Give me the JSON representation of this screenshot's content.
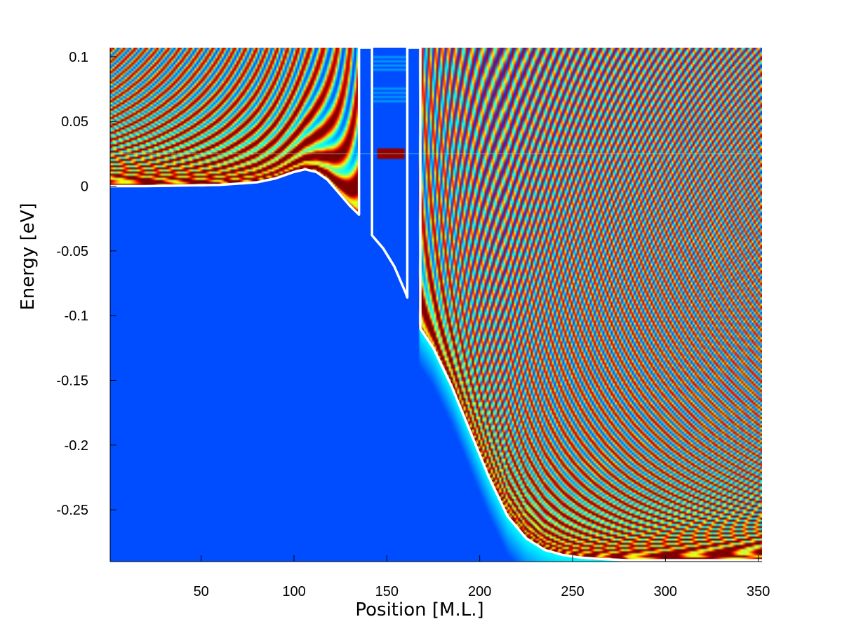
{
  "chart_data": {
    "type": "heatmap",
    "title": "",
    "xlabel": "Position [M.L.]",
    "ylabel": "Energy [eV]",
    "xlim": [
      1,
      352
    ],
    "ylim": [
      -0.29,
      0.107
    ],
    "x_ticks": [
      50,
      100,
      150,
      200,
      250,
      300,
      350
    ],
    "x_tick_labels": [
      "50",
      "100",
      "150",
      "200",
      "250",
      "300",
      "350"
    ],
    "y_ticks": [
      0.1,
      0.05,
      0,
      -0.05,
      -0.1,
      -0.15,
      -0.2,
      -0.25
    ],
    "y_tick_labels": [
      "0.1",
      "0.05",
      "0",
      "-0.05",
      "-0.1",
      "-0.15",
      "-0.2",
      "-0.25"
    ],
    "grid": false,
    "colormap": "jet",
    "colors": {
      "background_band": "#0a50ff",
      "profile_line": "#ffffff",
      "resonance_line": "#7fffd4"
    },
    "resonance_level_eV": 0.025,
    "barriers": [
      {
        "x_start": 135,
        "x_end": 142
      },
      {
        "x_start": 161,
        "x_end": 168
      }
    ],
    "band_profile": {
      "name": "",
      "x": [
        1,
        20,
        40,
        60,
        80,
        90,
        100,
        106,
        112,
        118,
        124,
        130,
        135,
        135,
        142,
        142,
        148,
        154,
        160,
        161,
        161,
        168,
        168,
        175,
        185,
        195,
        205,
        215,
        225,
        235,
        245,
        255,
        265,
        280,
        300,
        320,
        340,
        352
      ],
      "y": [
        0.0,
        0.0,
        0.0005,
        0.001,
        0.003,
        0.006,
        0.011,
        0.013,
        0.011,
        0.005,
        -0.005,
        -0.015,
        -0.022,
        0.107,
        0.107,
        -0.038,
        -0.048,
        -0.062,
        -0.082,
        -0.086,
        0.107,
        0.107,
        -0.11,
        -0.125,
        -0.155,
        -0.19,
        -0.225,
        -0.255,
        -0.272,
        -0.281,
        -0.285,
        -0.287,
        -0.288,
        -0.289,
        -0.289,
        -0.289,
        -0.289,
        -0.289
      ]
    }
  }
}
